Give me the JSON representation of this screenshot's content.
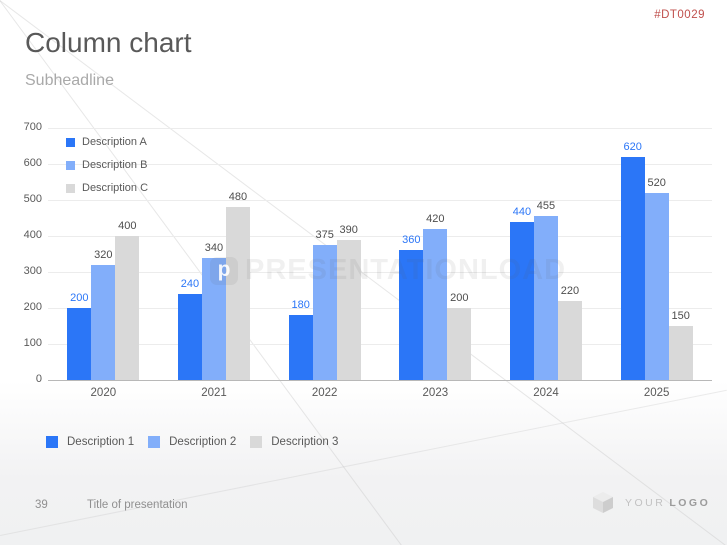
{
  "meta": {
    "code": "#DT0029",
    "code_color": "#c0504d"
  },
  "header": {
    "title": "Column chart",
    "subtitle": "Subheadline"
  },
  "chart_data": {
    "type": "bar",
    "title": "",
    "xlabel": "",
    "ylabel": "",
    "categories": [
      "2020",
      "2021",
      "2022",
      "2023",
      "2024",
      "2025"
    ],
    "series": [
      {
        "name": "Description A",
        "color": "#2b76f7",
        "label_color": "#2b76f7",
        "values": [
          200,
          240,
          180,
          360,
          440,
          620
        ]
      },
      {
        "name": "Description B",
        "color": "#82aefa",
        "label_color": "#4d4d4d",
        "values": [
          320,
          340,
          375,
          420,
          455,
          520
        ]
      },
      {
        "name": "Description C",
        "color": "#d9d9d9",
        "label_color": "#4d4d4d",
        "values": [
          400,
          480,
          390,
          200,
          220,
          150
        ]
      }
    ],
    "ylim": [
      0,
      700
    ],
    "ytick_step": 100,
    "grid": true,
    "legend_position": "top-left-inside"
  },
  "bottom_legend": {
    "items": [
      {
        "label": "Description 1",
        "color": "#2b76f7"
      },
      {
        "label": "Description 2",
        "color": "#82aefa"
      },
      {
        "label": "Description 3",
        "color": "#d9d9d9"
      }
    ]
  },
  "watermark": {
    "logo_letter": "p",
    "text": "PRESENTATIONLOAD"
  },
  "footer": {
    "page_number": "39",
    "title": "Title of presentation",
    "logo_text_light": "YOUR",
    "logo_text_bold": "LOGO",
    "logo_icon": "cube-icon"
  }
}
